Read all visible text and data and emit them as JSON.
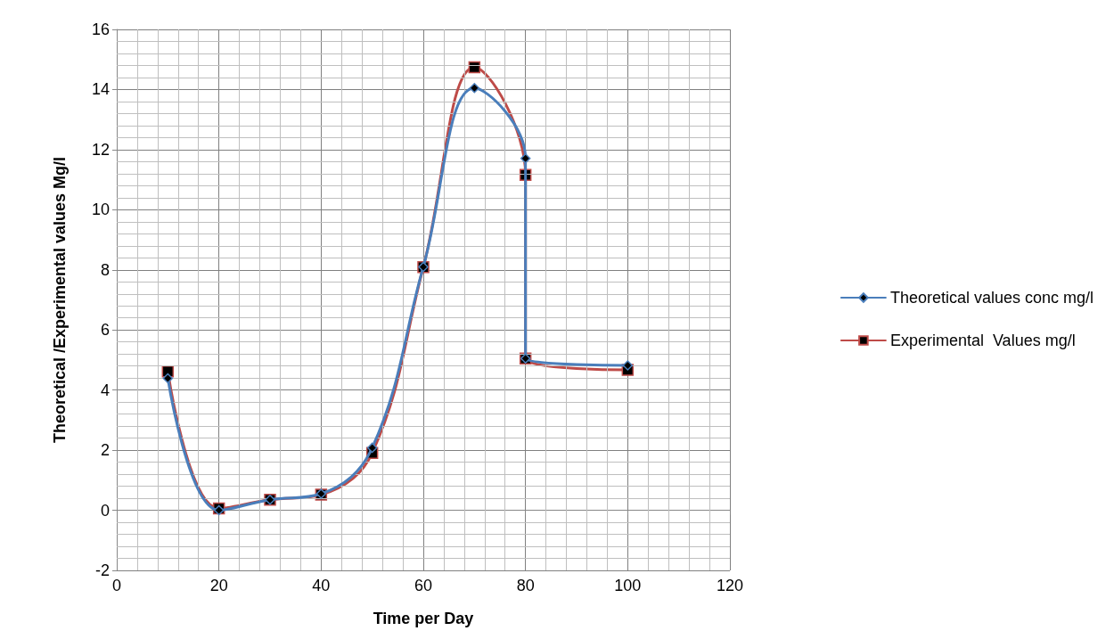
{
  "chart_data": {
    "type": "line",
    "xlabel": "Time per Day",
    "ylabel": "Theoretical /Experimental values Mg/l",
    "xlim": [
      0,
      120
    ],
    "xticks": [
      0,
      20,
      40,
      60,
      80,
      100,
      120
    ],
    "ylim": [
      -2,
      16
    ],
    "yticks": [
      -2,
      0,
      2,
      4,
      6,
      8,
      10,
      12,
      14,
      16
    ],
    "grid": true,
    "legend": "right",
    "line_style": "solid",
    "series": [
      {
        "name": "Theoretical values conc mg/l",
        "color": "#4a7ebb",
        "marker": "diamond",
        "x": [
          10,
          20,
          30,
          40,
          50,
          60,
          70,
          80,
          80,
          100
        ],
        "values": [
          4.39,
          0.0,
          0.35,
          0.55,
          2.08,
          8.1,
          14.05,
          11.71,
          5.05,
          4.82
        ]
      },
      {
        "name": "Experimental  Values mg/l",
        "color": "#be4b48",
        "marker": "square",
        "x": [
          10,
          20,
          30,
          40,
          50,
          60,
          70,
          80,
          80,
          100
        ],
        "values": [
          4.62,
          0.06,
          0.35,
          0.52,
          1.91,
          8.09,
          14.74,
          11.16,
          5.05,
          4.67
        ]
      }
    ]
  }
}
